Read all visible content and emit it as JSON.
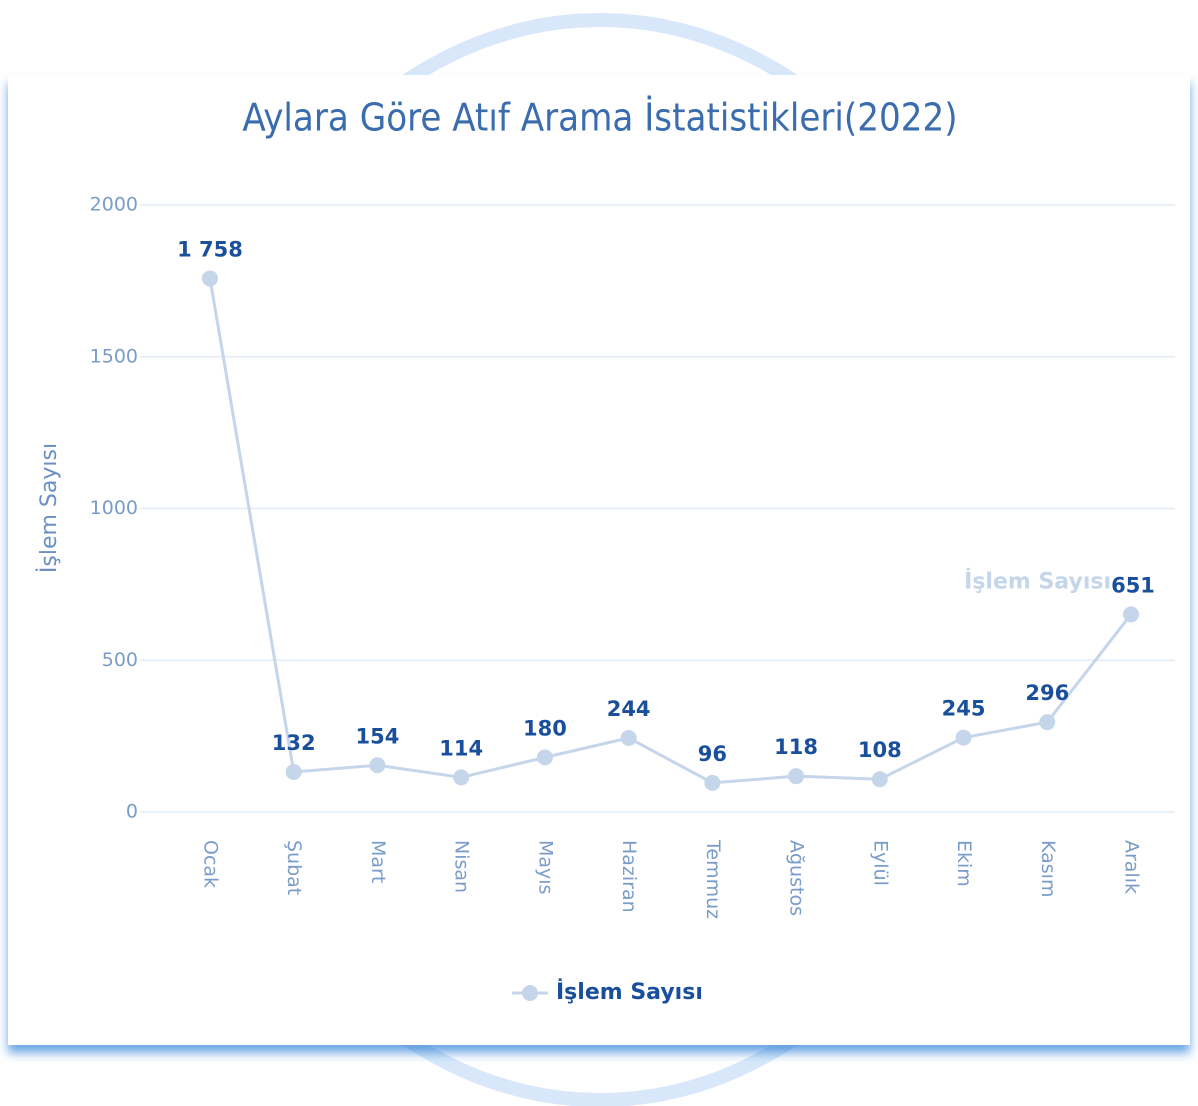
{
  "chart_data": {
    "type": "line",
    "title": "Aylara Göre Atıf Arama İstatistikleri(2022)",
    "y_label": "İşlem Sayısı",
    "categories": [
      "Ocak",
      "Şubat",
      "Mart",
      "Nisan",
      "Mayıs",
      "Haziran",
      "Temmuz",
      "Ağustos",
      "Eylül",
      "Ekim",
      "Kasım",
      "Aralık"
    ],
    "series": [
      {
        "name": "İşlem Sayısı",
        "color": "#c5d5ea",
        "values": [
          1758,
          132,
          154,
          114,
          180,
          244,
          96,
          118,
          108,
          245,
          296,
          651
        ],
        "value_labels": [
          "1 758",
          "132",
          "154",
          "114",
          "180",
          "244",
          "96",
          "118",
          "108",
          "245",
          "296",
          "651"
        ]
      }
    ],
    "ylim": [
      0,
      2000
    ],
    "yticks": [
      0,
      500,
      1000,
      1500,
      2000
    ],
    "grid": true,
    "legend": "bottom"
  }
}
